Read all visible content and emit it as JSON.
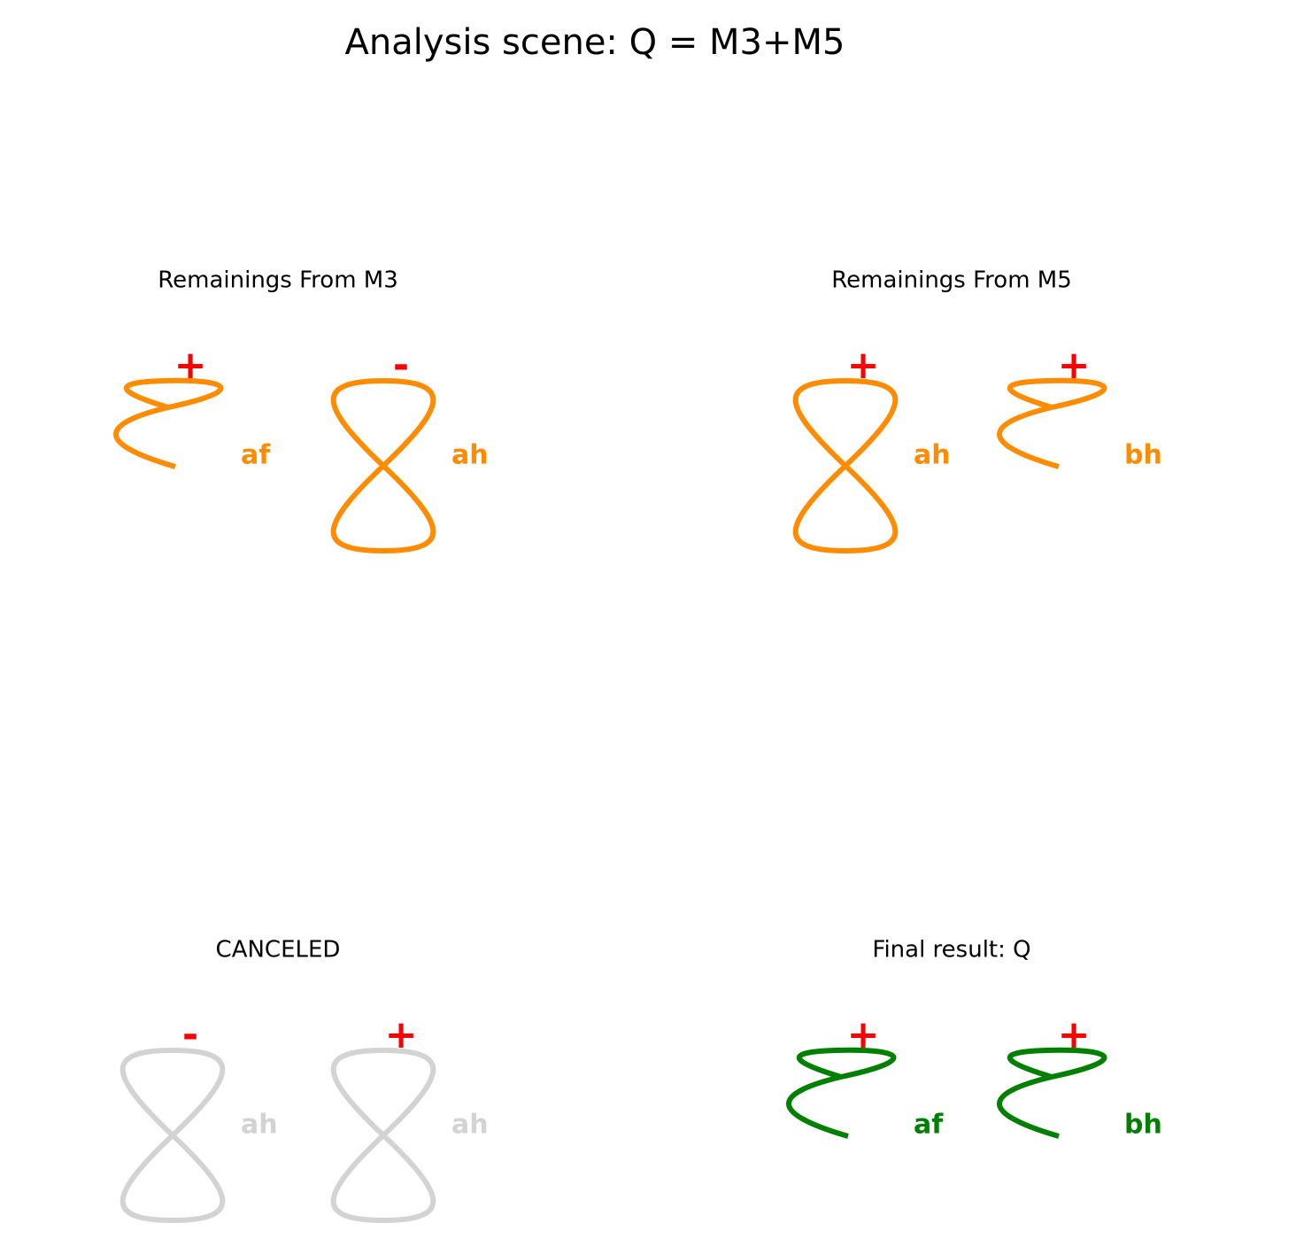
{
  "title": "Analysis scene: Q = M3+M5",
  "sign_color": "#ff0000",
  "panels": [
    {
      "title": "Remainings From M3",
      "color": "#ff8c00",
      "items": [
        {
          "sign": "+",
          "label": "af",
          "shape": "curl"
        },
        {
          "sign": "-",
          "label": "ah",
          "shape": "figure8"
        }
      ]
    },
    {
      "title": "Remainings From M5",
      "color": "#ff8c00",
      "items": [
        {
          "sign": "+",
          "label": "ah",
          "shape": "figure8"
        },
        {
          "sign": "+",
          "label": "bh",
          "shape": "curl"
        }
      ]
    },
    {
      "title": "CANCELED",
      "color": "#d3d3d3",
      "items": [
        {
          "sign": "-",
          "label": "ah",
          "shape": "figure8"
        },
        {
          "sign": "+",
          "label": "ah",
          "shape": "figure8"
        }
      ]
    },
    {
      "title": "Final result: Q",
      "color": "#008000",
      "items": [
        {
          "sign": "+",
          "label": "af",
          "shape": "curl"
        },
        {
          "sign": "+",
          "label": "bh",
          "shape": "curl"
        }
      ]
    }
  ]
}
